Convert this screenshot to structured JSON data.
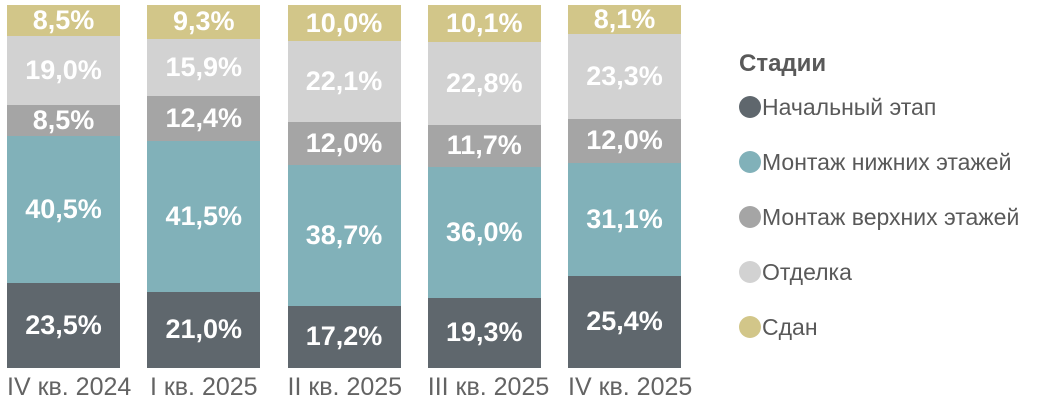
{
  "chart_data": {
    "type": "bar",
    "stacked": true,
    "orientation": "vertical",
    "title": "",
    "legend_title": "Стадии",
    "legend_position": "right",
    "value_format": "percent-comma-decimal",
    "ylim": [
      0,
      100
    ],
    "grid": false,
    "categories": [
      "IV кв. 2024",
      "I кв. 2025",
      "II кв. 2025",
      "III кв. 2025",
      "IV кв. 2025"
    ],
    "series": [
      {
        "key": "initial-stage",
        "name": "Начальный этап",
        "color": "#5f676d",
        "values": [
          23.5,
          21.0,
          17.2,
          19.3,
          25.4
        ],
        "labels": [
          "23,5%",
          "21,0%",
          "17,2%",
          "19,3%",
          "25,4%"
        ]
      },
      {
        "key": "lower-floors-assembly",
        "name": "Монтаж нижних этажей",
        "color": "#81b1b9",
        "values": [
          40.5,
          41.5,
          38.7,
          36.0,
          31.1
        ],
        "labels": [
          "40,5%",
          "41,5%",
          "38,7%",
          "36,0%",
          "31,1%"
        ]
      },
      {
        "key": "upper-floors-assembly",
        "name": "Монтаж верхних этажей",
        "color": "#a5a5a5",
        "values": [
          8.5,
          12.4,
          12.0,
          11.7,
          12.0
        ],
        "labels": [
          "8,5%",
          "12,4%",
          "12,0%",
          "11,7%",
          "12,0%"
        ]
      },
      {
        "key": "finishing",
        "name": "Отделка",
        "color": "#d2d2d2",
        "values": [
          19.0,
          15.9,
          22.1,
          22.8,
          23.3
        ],
        "labels": [
          "19,0%",
          "15,9%",
          "22,1%",
          "22,8%",
          "23,3%"
        ]
      },
      {
        "key": "delivered",
        "name": "Сдан",
        "color": "#d2c689",
        "values": [
          8.5,
          9.3,
          10.0,
          10.1,
          8.1
        ],
        "labels": [
          "8,5%",
          "9,3%",
          "10,0%",
          "10,1%",
          "8,1%"
        ]
      }
    ],
    "label_text_color": "#ffffff",
    "axis_label_color": "#636363",
    "legend_text_color": "#595959"
  }
}
